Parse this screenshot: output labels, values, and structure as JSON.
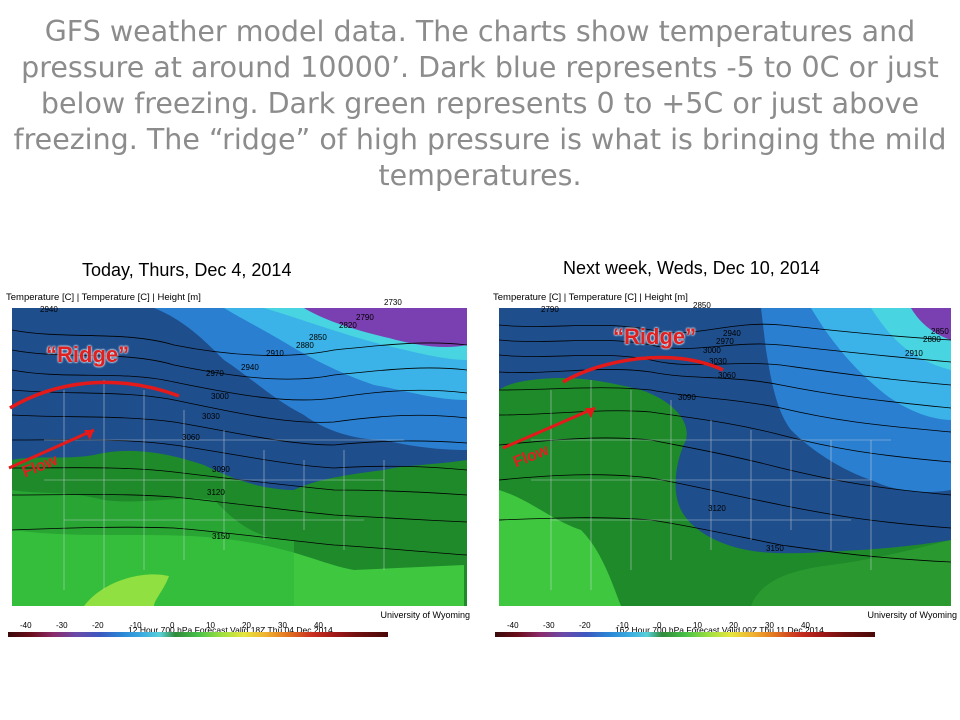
{
  "headline": "GFS weather model data.  The charts show temperatures and pressure at around 10000’.  Dark blue represents -5 to 0C or just below freezing.  Dark green represents 0 to +5C or just above freezing.  The “ridge” of high pressure is what is bringing the mild temperatures.",
  "captions": {
    "left": "Today, Thurs, Dec 4, 2014",
    "right": "Next week, Weds, Dec 10, 2014"
  },
  "map_header": "Temperature [C] | Temperature [C] | Height [m]",
  "source": "University of Wyoming",
  "colorbar_ticks": [
    "-40",
    "-30",
    "-20",
    "-10",
    "0",
    "10",
    "20",
    "30",
    "40"
  ],
  "left_map": {
    "forecast": "12 Hour 700 hPa Forecast Valid 18Z Thu 04 Dec 2014",
    "ridge_label": "“Ridge”",
    "flow_label": "Flow",
    "height_labels": [
      "2730",
      "2850",
      "2880",
      "2910",
      "2940",
      "2970",
      "3000",
      "3030",
      "3060",
      "3090",
      "3120",
      "3150",
      "2820",
      "2790",
      "2940"
    ],
    "colors": {
      "dark_blue": "#1f4e8c",
      "mid_blue": "#2a7fd0",
      "light_blue": "#3bb3e8",
      "cyan": "#48d4e0",
      "purple": "#7a3fb0",
      "dark_green": "#1f8a2a",
      "green": "#2fb83a",
      "light_green": "#5ad040",
      "yellow_green": "#a8e040"
    }
  },
  "right_map": {
    "forecast": "162 Hour 700 hPa Forecast Valid 00Z Thu 11 Dec 2014",
    "ridge_label": "“Ridge”",
    "flow_label": "Flow",
    "height_labels": [
      "2790",
      "2850",
      "2940",
      "2970",
      "3000",
      "3030",
      "3060",
      "3090",
      "2880",
      "2910",
      "3120",
      "3150",
      "2850"
    ]
  }
}
